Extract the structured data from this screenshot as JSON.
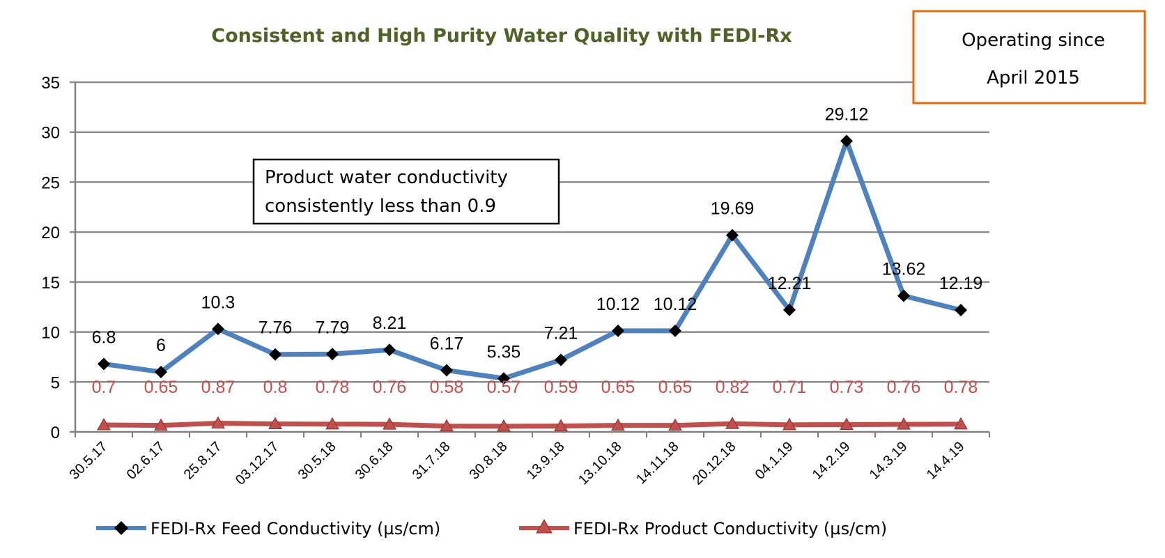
{
  "chart_data": {
    "type": "line",
    "title": "Consistent and High Purity Water Quality with FEDI-Rx",
    "xlabel": "",
    "ylabel": "",
    "ylim": [
      0,
      35
    ],
    "yticks": [
      "0",
      "5",
      "10",
      "15",
      "20",
      "25",
      "30",
      "35"
    ],
    "grid": true,
    "legend_position": "bottom",
    "categories": [
      "30.5.17",
      "02.6.17",
      "25.8.17",
      "03.12.17",
      "30.5.18",
      "30.6.18",
      "31.7.18",
      "30.8.18",
      "13.9.18",
      "13.10.18",
      "14.11.18",
      "20.12.18",
      "04.1.19",
      "14.2.19",
      "14.3.19",
      "14.4.19"
    ],
    "series": [
      {
        "name": "FEDI-Rx Feed Conductivity (µs/cm)",
        "color": "#4f81bd",
        "marker": "diamond",
        "values": [
          6.8,
          6,
          10.3,
          7.76,
          7.79,
          8.21,
          6.17,
          5.35,
          7.21,
          10.12,
          10.12,
          19.69,
          12.21,
          29.12,
          13.62,
          12.19
        ],
        "labels": [
          "6.8",
          "6",
          "10.3",
          "7.76",
          "7.79",
          "8.21",
          "6.17",
          "5.35",
          "7.21",
          "10.12",
          "10.12",
          "19.69",
          "12.21",
          "29.12",
          "13.62",
          "12.19"
        ]
      },
      {
        "name": "FEDI-Rx Product Conductivity (µs/cm)",
        "color": "#c0504d",
        "marker": "triangle",
        "values": [
          0.7,
          0.65,
          0.87,
          0.8,
          0.78,
          0.76,
          0.58,
          0.57,
          0.59,
          0.65,
          0.65,
          0.82,
          0.71,
          0.73,
          0.76,
          0.78
        ],
        "labels": [
          "0.7",
          "0.65",
          "0.87",
          "0.8",
          "0.78",
          "0.76",
          "0.58",
          "0.57",
          "0.59",
          "0.65",
          "0.65",
          "0.82",
          "0.71",
          "0.73",
          "0.76",
          "0.78"
        ]
      }
    ],
    "annotations": [
      {
        "text_lines": [
          "Product water conductivity",
          "consistently less than 0.9"
        ]
      }
    ]
  },
  "callout": {
    "lines": [
      "Operating since",
      "April 2015"
    ],
    "border_color": "#e36c09"
  }
}
